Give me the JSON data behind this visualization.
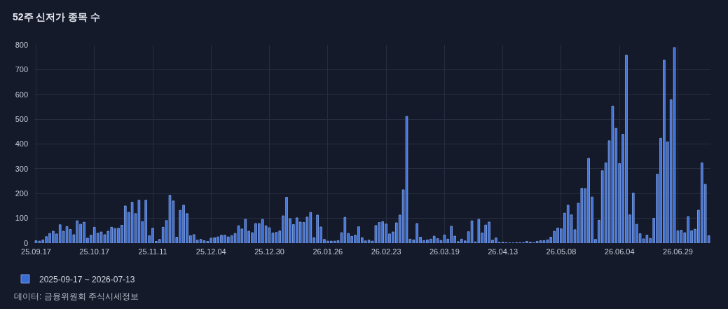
{
  "chart_data": {
    "type": "bar",
    "title": "52주 신저가 종목 수",
    "categories": [
      "25.09.17",
      null,
      null,
      null,
      null,
      null,
      null,
      null,
      null,
      null,
      null,
      null,
      null,
      null,
      null,
      null,
      null,
      "25.10.17",
      null,
      null,
      null,
      null,
      null,
      null,
      null,
      null,
      null,
      null,
      null,
      null,
      null,
      null,
      null,
      null,
      "25.11.11",
      null,
      null,
      null,
      null,
      null,
      null,
      null,
      null,
      null,
      null,
      null,
      null,
      null,
      null,
      null,
      null,
      "25.12.04",
      null,
      null,
      null,
      null,
      null,
      null,
      null,
      null,
      null,
      null,
      null,
      null,
      null,
      null,
      null,
      null,
      "25.12.30",
      null,
      null,
      null,
      null,
      null,
      null,
      null,
      null,
      null,
      null,
      null,
      null,
      null,
      null,
      null,
      null,
      "26.01.26",
      null,
      null,
      null,
      null,
      null,
      null,
      null,
      null,
      null,
      null,
      null,
      null,
      null,
      null,
      null,
      null,
      "26.02.23",
      null,
      null,
      null,
      null,
      null,
      null,
      null,
      null,
      null,
      null,
      null,
      null,
      null,
      null,
      null,
      null,
      "26.03.19",
      null,
      null,
      null,
      null,
      null,
      null,
      null,
      null,
      null,
      null,
      null,
      null,
      null,
      null,
      null,
      null,
      "26.04.13",
      null,
      null,
      null,
      null,
      null,
      null,
      null,
      null,
      null,
      null,
      null,
      null,
      null,
      null,
      null,
      null,
      "26.05.08",
      null,
      null,
      null,
      null,
      null,
      null,
      null,
      null,
      null,
      null,
      null,
      null,
      null,
      null,
      null,
      null,
      "26.06.04",
      null,
      null,
      null,
      null,
      null,
      null,
      null,
      null,
      null,
      null,
      null,
      null,
      null,
      null,
      null,
      null,
      "26.06.29",
      null,
      null,
      null,
      null,
      null,
      null,
      null,
      null,
      null
    ],
    "series": [
      {
        "name": "2025-09-17 ~ 2026-07-13",
        "color": "#3a6cd2",
        "values": [
          10,
          8,
          13,
          26,
          39,
          48,
          37,
          74,
          48,
          67,
          55,
          34,
          90,
          76,
          84,
          20,
          32,
          64,
          40,
          45,
          34,
          48,
          64,
          59,
          60,
          72,
          150,
          124,
          165,
          119,
          173,
          87,
          173,
          30,
          60,
          7,
          15,
          64,
          91,
          193,
          170,
          24,
          132,
          153,
          119,
          30,
          34,
          12,
          15,
          10,
          7,
          20,
          22,
          25,
          32,
          32,
          25,
          30,
          39,
          70,
          57,
          96,
          48,
          42,
          79,
          79,
          96,
          70,
          62,
          41,
          43,
          49,
          110,
          185,
          99,
          75,
          102,
          85,
          83,
          105,
          124,
          22,
          113,
          65,
          15,
          8,
          8,
          8,
          10,
          42,
          104,
          39,
          27,
          32,
          66,
          22,
          9,
          12,
          8,
          71,
          83,
          87,
          77,
          37,
          45,
          82,
          113,
          215,
          511,
          16,
          13,
          79,
          24,
          10,
          13,
          16,
          28,
          18,
          11,
          33,
          16,
          68,
          28,
          6,
          16,
          9,
          46,
          90,
          5,
          96,
          41,
          73,
          85,
          12,
          21,
          3,
          4,
          2,
          1,
          1,
          2,
          2,
          2,
          7,
          4,
          2,
          7,
          10,
          10,
          13,
          24,
          48,
          61,
          58,
          121,
          153,
          114,
          54,
          161,
          221,
          220,
          342,
          186,
          15,
          92,
          292,
          324,
          413,
          553,
          463,
          321,
          439,
          758,
          114,
          202,
          76,
          38,
          17,
          32,
          19,
          100,
          278,
          423,
          738,
          408,
          579,
          789,
          50,
          52,
          42,
          107,
          50,
          56,
          133,
          324,
          237,
          30
        ]
      }
    ],
    "ylim": [
      0,
      800
    ],
    "yticks": [
      0,
      100,
      200,
      300,
      400,
      500,
      600,
      700,
      800
    ],
    "grid": true,
    "legend": "bottom left",
    "annotations": [
      "데이터: 금융위원회 주식시세정보"
    ]
  }
}
